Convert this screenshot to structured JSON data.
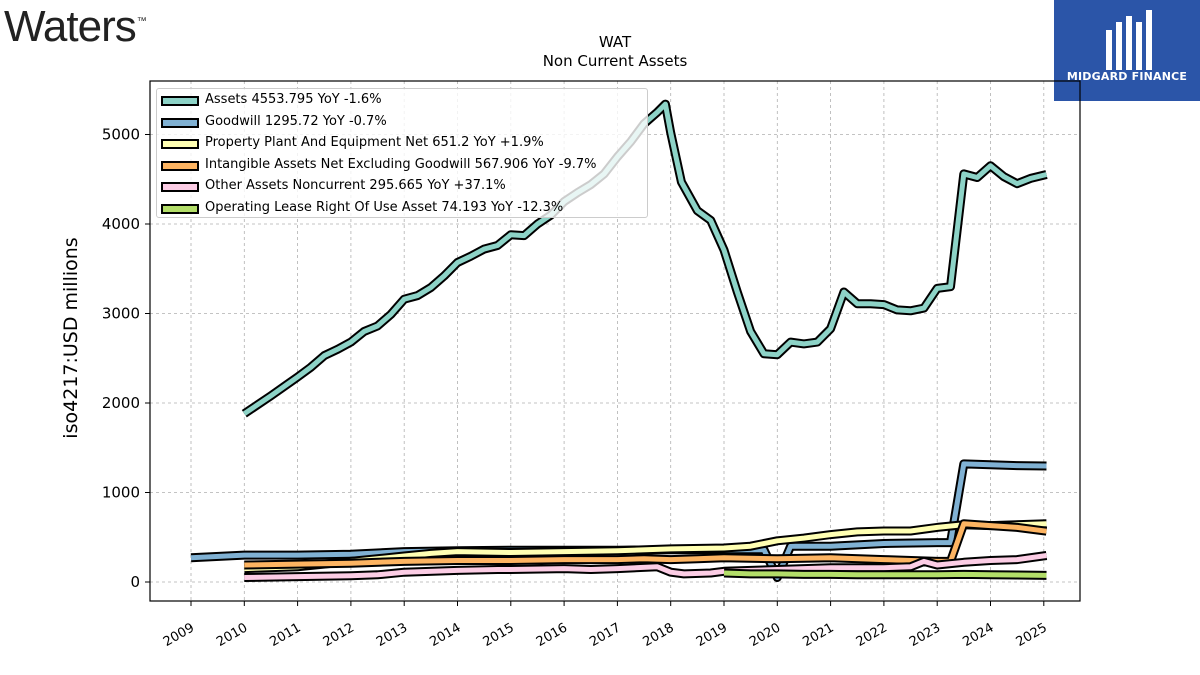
{
  "logo": {
    "text": "Waters",
    "tm": "™"
  },
  "badge": {
    "text": "MIDGARD FINANCE",
    "color": "#2b55a8"
  },
  "chart_data": {
    "type": "line",
    "title": "WAT",
    "subtitle": "Non Current  Assets",
    "ylabel": "iso4217:USD  millions",
    "xlabel": "",
    "ylim": [
      -200,
      5600
    ],
    "yticks": [
      "0",
      "1000",
      "2000",
      "3000",
      "4000",
      "5000"
    ],
    "xticks": [
      "2009",
      "2010",
      "2011",
      "2012",
      "2013",
      "2014",
      "2015",
      "2016",
      "2017",
      "2018",
      "2019",
      "2020",
      "2021",
      "2022",
      "2023",
      "2024",
      "2025"
    ],
    "grid": true,
    "legend_position": "top-left",
    "series": [
      {
        "name": "Assets  4553.795 YoY -1.6%",
        "color": "#8dd3c7",
        "points": [
          [
            2010.0,
            1880
          ],
          [
            2010.5,
            2080
          ],
          [
            2011.0,
            2290
          ],
          [
            2011.25,
            2400
          ],
          [
            2011.5,
            2530
          ],
          [
            2011.75,
            2600
          ],
          [
            2012.0,
            2680
          ],
          [
            2012.25,
            2800
          ],
          [
            2012.5,
            2860
          ],
          [
            2012.75,
            2990
          ],
          [
            2013.0,
            3160
          ],
          [
            2013.25,
            3200
          ],
          [
            2013.5,
            3290
          ],
          [
            2013.75,
            3420
          ],
          [
            2014.0,
            3570
          ],
          [
            2014.25,
            3640
          ],
          [
            2014.5,
            3720
          ],
          [
            2014.75,
            3760
          ],
          [
            2015.0,
            3880
          ],
          [
            2015.25,
            3870
          ],
          [
            2015.5,
            4000
          ],
          [
            2015.75,
            4100
          ],
          [
            2016.0,
            4250
          ],
          [
            2016.25,
            4350
          ],
          [
            2016.5,
            4440
          ],
          [
            2016.75,
            4560
          ],
          [
            2017.0,
            4750
          ],
          [
            2017.25,
            4920
          ],
          [
            2017.5,
            5120
          ],
          [
            2017.75,
            5250
          ],
          [
            2017.9,
            5340
          ],
          [
            2018.0,
            5020
          ],
          [
            2018.2,
            4470
          ],
          [
            2018.5,
            4150
          ],
          [
            2018.75,
            4040
          ],
          [
            2019.0,
            3710
          ],
          [
            2019.25,
            3240
          ],
          [
            2019.5,
            2800
          ],
          [
            2019.75,
            2550
          ],
          [
            2020.0,
            2540
          ],
          [
            2020.25,
            2680
          ],
          [
            2020.5,
            2660
          ],
          [
            2020.75,
            2680
          ],
          [
            2021.0,
            2830
          ],
          [
            2021.25,
            3240
          ],
          [
            2021.5,
            3110
          ],
          [
            2021.75,
            3110
          ],
          [
            2022.0,
            3100
          ],
          [
            2022.25,
            3040
          ],
          [
            2022.5,
            3030
          ],
          [
            2022.75,
            3060
          ],
          [
            2023.0,
            3280
          ],
          [
            2023.25,
            3300
          ],
          [
            2023.5,
            4560
          ],
          [
            2023.75,
            4520
          ],
          [
            2024.0,
            4650
          ],
          [
            2024.25,
            4530
          ],
          [
            2024.5,
            4450
          ],
          [
            2024.75,
            4510
          ],
          [
            2025.05,
            4553
          ]
        ]
      },
      {
        "name": "Goodwill  1295.72 YoY -0.7%",
        "color": "#80b1d3",
        "points": [
          [
            2009.0,
            270
          ],
          [
            2010.0,
            300
          ],
          [
            2011.0,
            300
          ],
          [
            2012.0,
            310
          ],
          [
            2013.0,
            340
          ],
          [
            2014.0,
            350
          ],
          [
            2015.0,
            355
          ],
          [
            2016.0,
            355
          ],
          [
            2017.0,
            355
          ],
          [
            2018.0,
            360
          ],
          [
            2019.0,
            360
          ],
          [
            2019.75,
            360
          ],
          [
            2020.0,
            50
          ],
          [
            2020.25,
            400
          ],
          [
            2021.0,
            400
          ],
          [
            2022.0,
            430
          ],
          [
            2023.0,
            440
          ],
          [
            2023.25,
            440
          ],
          [
            2023.5,
            1320
          ],
          [
            2024.0,
            1310
          ],
          [
            2024.5,
            1300
          ],
          [
            2025.05,
            1296
          ]
        ]
      },
      {
        "name": "Property Plant And Equipment Net  651.2 YoY +1.9%",
        "color": "#ffffb3",
        "points": [
          [
            2010.0,
            150
          ],
          [
            2011.0,
            170
          ],
          [
            2012.0,
            230
          ],
          [
            2013.0,
            290
          ],
          [
            2013.5,
            320
          ],
          [
            2014.0,
            340
          ],
          [
            2015.0,
            330
          ],
          [
            2016.0,
            340
          ],
          [
            2017.0,
            350
          ],
          [
            2018.0,
            370
          ],
          [
            2019.0,
            380
          ],
          [
            2019.5,
            400
          ],
          [
            2020.0,
            460
          ],
          [
            2020.5,
            490
          ],
          [
            2021.0,
            530
          ],
          [
            2021.5,
            560
          ],
          [
            2022.0,
            570
          ],
          [
            2022.5,
            570
          ],
          [
            2023.0,
            610
          ],
          [
            2023.5,
            640
          ],
          [
            2024.0,
            630
          ],
          [
            2025.05,
            651
          ]
        ]
      },
      {
        "name": "Intangible Assets Net Excluding Goodwill  567.906 YoY -9.7%",
        "color": "#fdb462",
        "points": [
          [
            2010.0,
            190
          ],
          [
            2011.0,
            200
          ],
          [
            2012.0,
            210
          ],
          [
            2013.0,
            230
          ],
          [
            2014.0,
            240
          ],
          [
            2015.0,
            240
          ],
          [
            2016.0,
            250
          ],
          [
            2017.0,
            250
          ],
          [
            2017.5,
            260
          ],
          [
            2018.0,
            250
          ],
          [
            2018.5,
            260
          ],
          [
            2019.0,
            270
          ],
          [
            2020.0,
            260
          ],
          [
            2021.0,
            270
          ],
          [
            2022.0,
            250
          ],
          [
            2023.0,
            230
          ],
          [
            2023.25,
            230
          ],
          [
            2023.5,
            650
          ],
          [
            2024.0,
            630
          ],
          [
            2024.5,
            610
          ],
          [
            2025.05,
            568
          ]
        ]
      },
      {
        "name": "Other Assets Noncurrent  295.665 YoY +37.1%",
        "color": "#fccde5",
        "points": [
          [
            2010.0,
            50
          ],
          [
            2011.0,
            60
          ],
          [
            2012.0,
            70
          ],
          [
            2012.5,
            80
          ],
          [
            2013.0,
            110
          ],
          [
            2014.0,
            130
          ],
          [
            2014.75,
            140
          ],
          [
            2015.0,
            140
          ],
          [
            2016.0,
            150
          ],
          [
            2016.5,
            140
          ],
          [
            2017.0,
            150
          ],
          [
            2017.75,
            170
          ],
          [
            2018.0,
            110
          ],
          [
            2018.25,
            90
          ],
          [
            2018.75,
            100
          ],
          [
            2019.0,
            120
          ],
          [
            2020.0,
            140
          ],
          [
            2021.0,
            160
          ],
          [
            2022.0,
            160
          ],
          [
            2022.5,
            170
          ],
          [
            2022.75,
            230
          ],
          [
            2023.0,
            190
          ],
          [
            2023.5,
            220
          ],
          [
            2024.0,
            240
          ],
          [
            2024.5,
            250
          ],
          [
            2025.05,
            296
          ]
        ]
      },
      {
        "name": "Operating Lease Right Of Use Asset  74.193 YoY -12.3%",
        "color": "#b3de69",
        "points": [
          [
            2019.0,
            100
          ],
          [
            2019.5,
            90
          ],
          [
            2020.0,
            90
          ],
          [
            2020.5,
            85
          ],
          [
            2021.0,
            85
          ],
          [
            2021.5,
            80
          ],
          [
            2022.0,
            80
          ],
          [
            2022.5,
            80
          ],
          [
            2023.0,
            80
          ],
          [
            2023.5,
            85
          ],
          [
            2024.0,
            80
          ],
          [
            2024.5,
            78
          ],
          [
            2025.05,
            74
          ]
        ]
      }
    ]
  }
}
